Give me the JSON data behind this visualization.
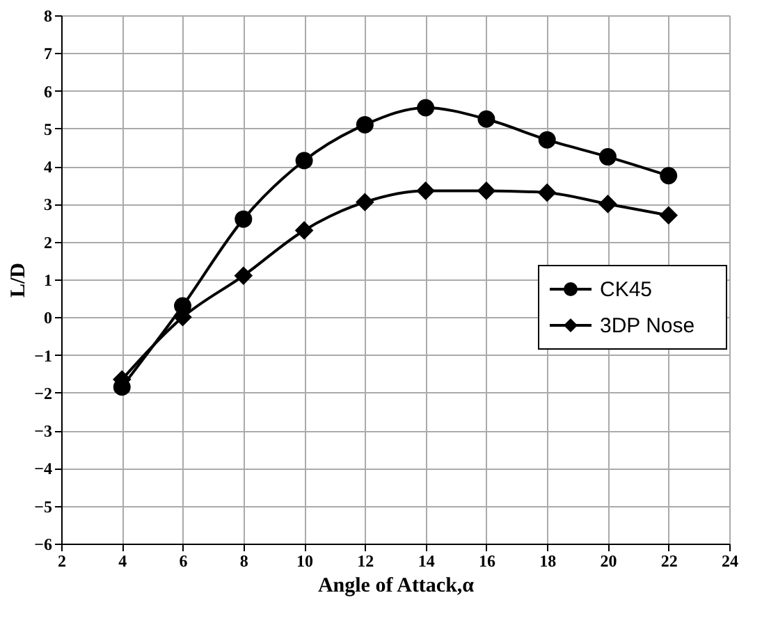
{
  "chart_data": {
    "type": "line",
    "xlabel": "Angle of Attack,α",
    "ylabel": "L/D",
    "x": [
      4,
      6,
      8,
      10,
      12,
      14,
      16,
      18,
      20,
      22
    ],
    "series": [
      {
        "name": "CK45",
        "color": "#000000",
        "marker": "circle",
        "values": [
          -1.85,
          0.3,
          2.6,
          4.15,
          5.1,
          5.55,
          5.25,
          4.7,
          4.25,
          3.75
        ]
      },
      {
        "name": "3DP Nose",
        "color": "#000000",
        "marker": "diamond",
        "values": [
          -1.65,
          0.0,
          1.1,
          2.3,
          3.05,
          3.35,
          3.35,
          3.3,
          3.0,
          2.7
        ]
      }
    ],
    "xlim": [
      2,
      24
    ],
    "xticks": [
      2,
      4,
      6,
      8,
      10,
      12,
      14,
      16,
      18,
      20,
      22,
      24
    ],
    "ylim": [
      -6,
      8
    ],
    "yticks": [
      -6,
      -5,
      -4,
      -3,
      -2,
      -1,
      0,
      1,
      2,
      3,
      4,
      5,
      6,
      7,
      8
    ],
    "grid": true,
    "legend": "right",
    "line_style": "solid"
  }
}
